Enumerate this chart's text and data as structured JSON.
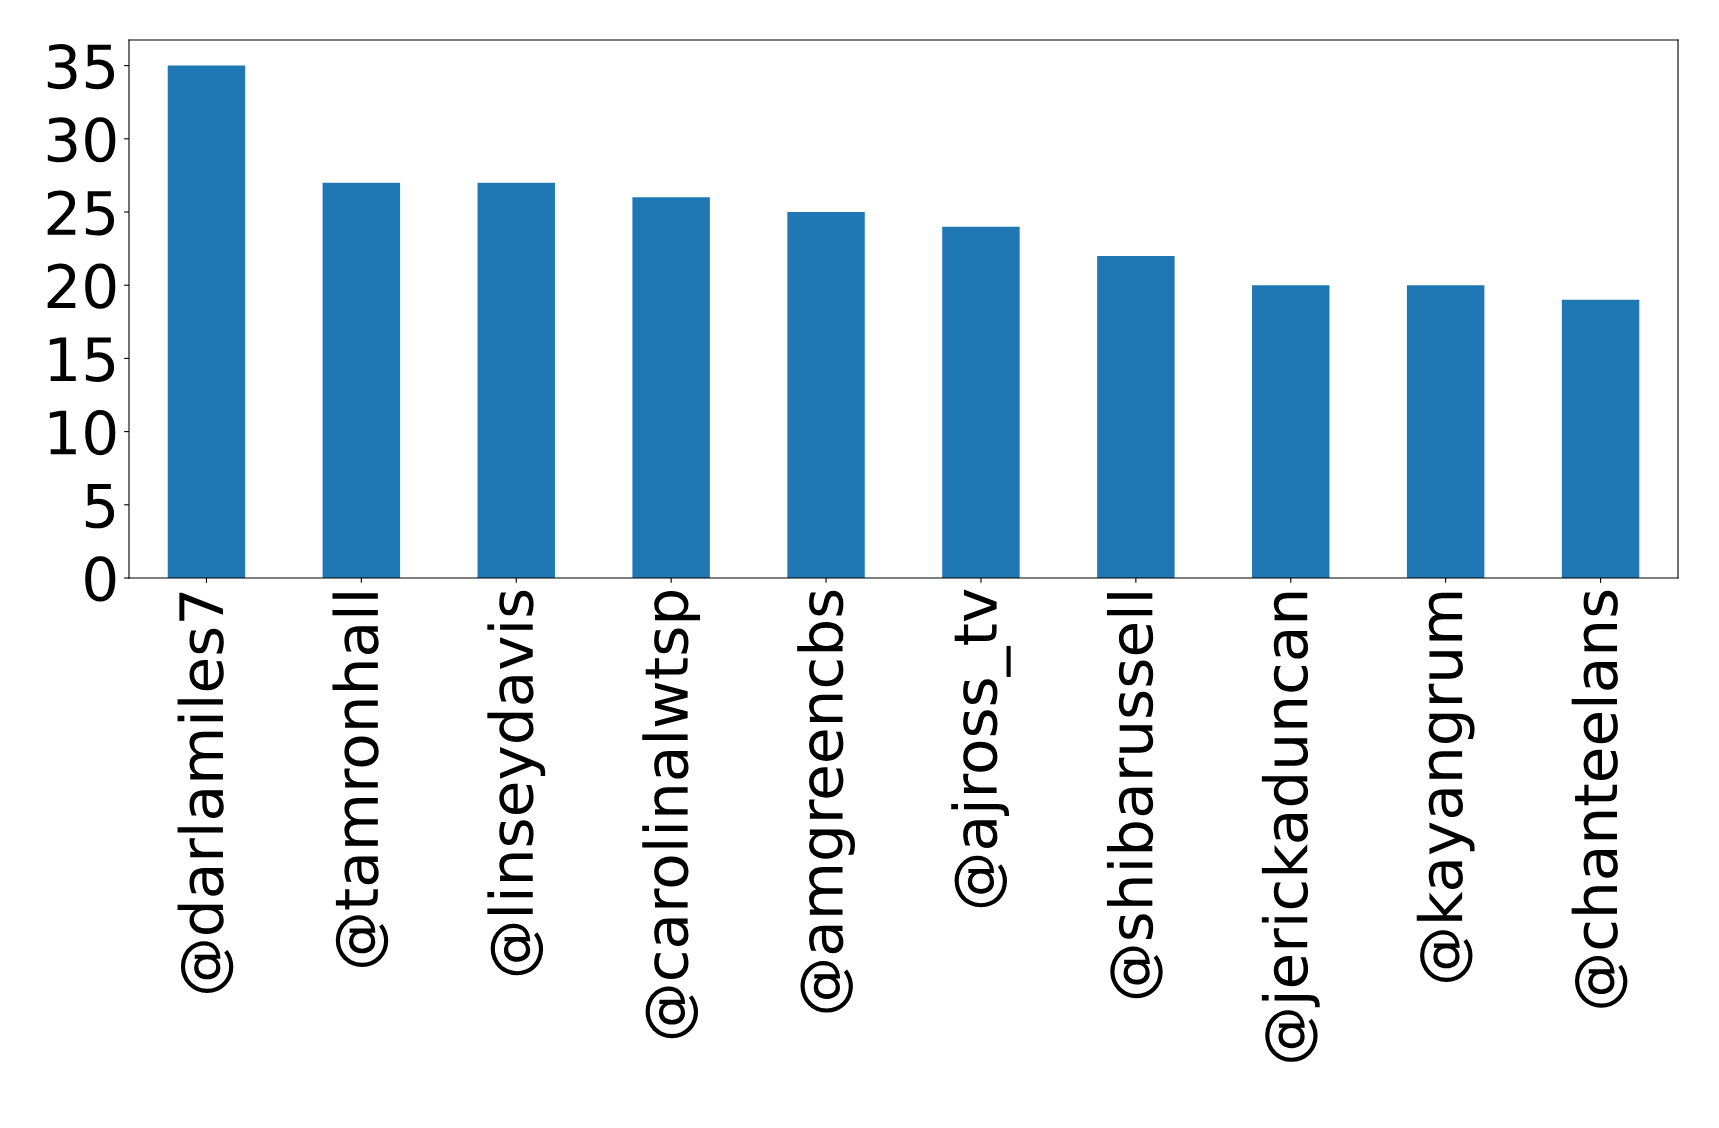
{
  "chart_data": {
    "type": "bar",
    "categories": [
      "@darlamiles7",
      "@tamronhall",
      "@linseydavis",
      "@carolinalwtsp",
      "@amgreencbs",
      "@ajross_tv",
      "@shibarussell",
      "@jerickaduncan",
      "@kayangrum",
      "@chanteelans"
    ],
    "values": [
      35,
      27,
      27,
      26,
      25,
      24,
      22,
      20,
      20,
      19
    ],
    "color": "#1f77b4",
    "ylim": [
      0,
      36.75
    ],
    "yticks": [
      0,
      5,
      10,
      15,
      20,
      25,
      30,
      35
    ],
    "grid": false,
    "legend": false
  }
}
